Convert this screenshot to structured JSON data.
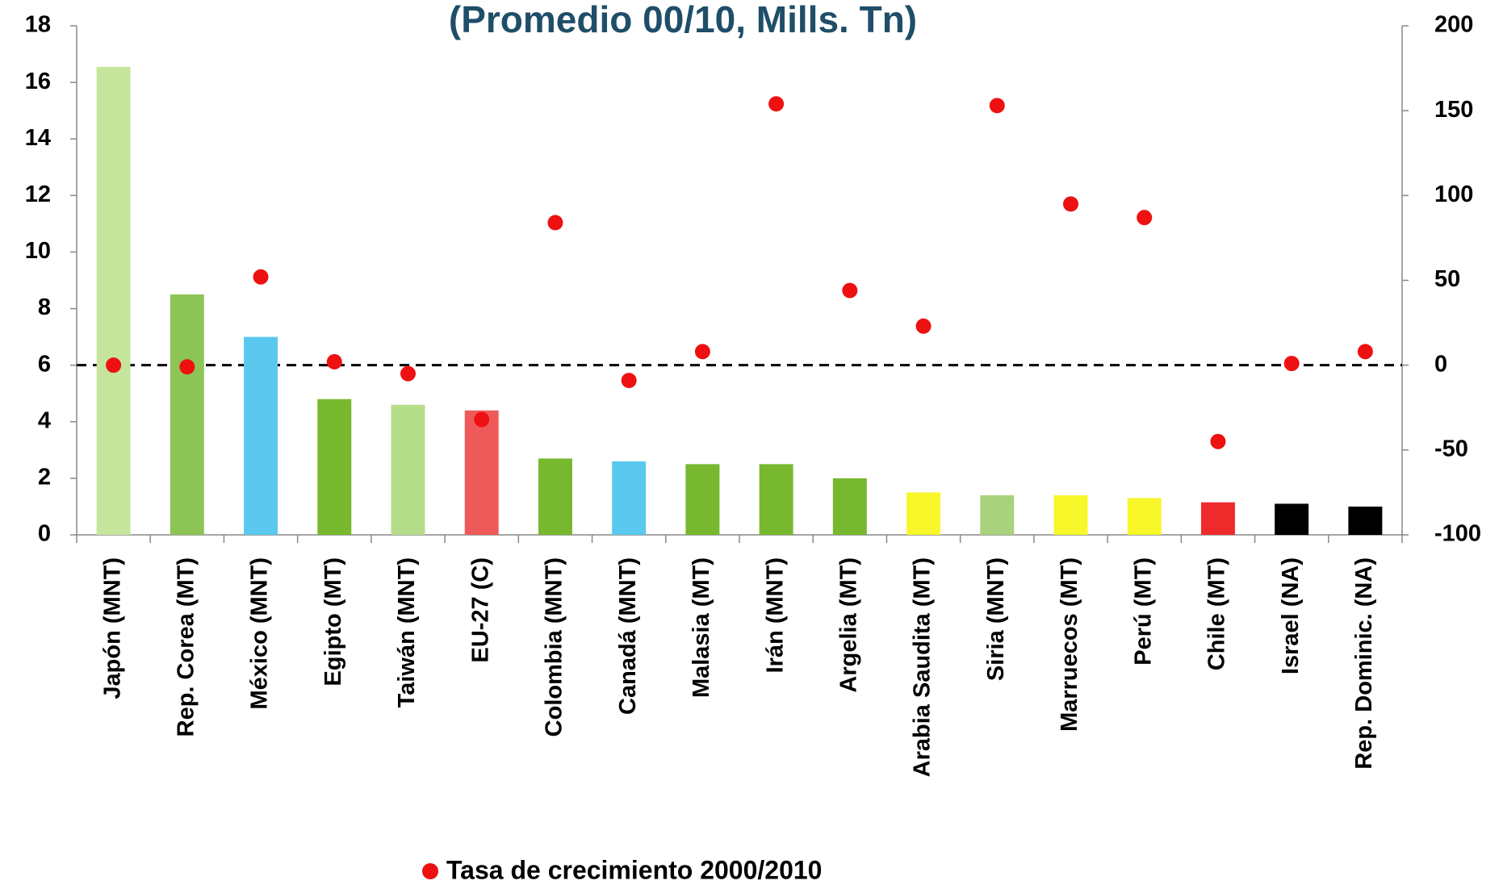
{
  "chart_data": {
    "type": "bar",
    "title": "(Promedio 00/10, Mills. Tn)",
    "categories": [
      "Japón (MNT)",
      "Rep. Corea (MT)",
      "México (MNT)",
      "Egipto (MT)",
      "Taiwán (MNT)",
      "EU-27 (C)",
      "Colombia (MNT)",
      "Canadá (MNT)",
      "Malasia (MT)",
      "Irán (MNT)",
      "Argelia (MT)",
      "Arabia Saudita (MT)",
      "Siria (MNT)",
      "Marruecos (MT)",
      "Perú (MT)",
      "Chile (MT)",
      "Israel (NA)",
      "Rep. Dominic. (NA)"
    ],
    "series": [
      {
        "type": "bar",
        "values": [
          16.55,
          8.5,
          7.0,
          4.8,
          4.6,
          4.4,
          2.7,
          2.6,
          2.5,
          2.5,
          2.0,
          1.5,
          1.4,
          1.4,
          1.3,
          1.15,
          1.1,
          1.0
        ],
        "colors": [
          "#c6e59c",
          "#8cc456",
          "#5bc8ef",
          "#77b82e",
          "#b5dc88",
          "#ee5a5a",
          "#77b82e",
          "#5bc8ef",
          "#77b82e",
          "#77b82e",
          "#77b82e",
          "#f7f72a",
          "#a9d27c",
          "#f7f72a",
          "#f7f72a",
          "#ee2a2a",
          "#000000",
          "#000000"
        ]
      },
      {
        "type": "scatter",
        "name": "Tasa de crecimiento 2000/2010",
        "axis": "y2",
        "color": "#ee1111",
        "values": [
          0,
          -1,
          52,
          2,
          -5,
          -32,
          84,
          -9,
          8,
          154,
          44,
          23,
          153,
          95,
          87,
          -45,
          1,
          8
        ]
      }
    ],
    "ylim": [
      0,
      18
    ],
    "yticks": [
      0,
      2,
      4,
      6,
      8,
      10,
      12,
      14,
      16,
      18
    ],
    "y2lim": [
      -100,
      200
    ],
    "y2ticks": [
      -100,
      -50,
      0,
      50,
      100,
      150,
      200
    ],
    "y2_reference_line": 0
  }
}
